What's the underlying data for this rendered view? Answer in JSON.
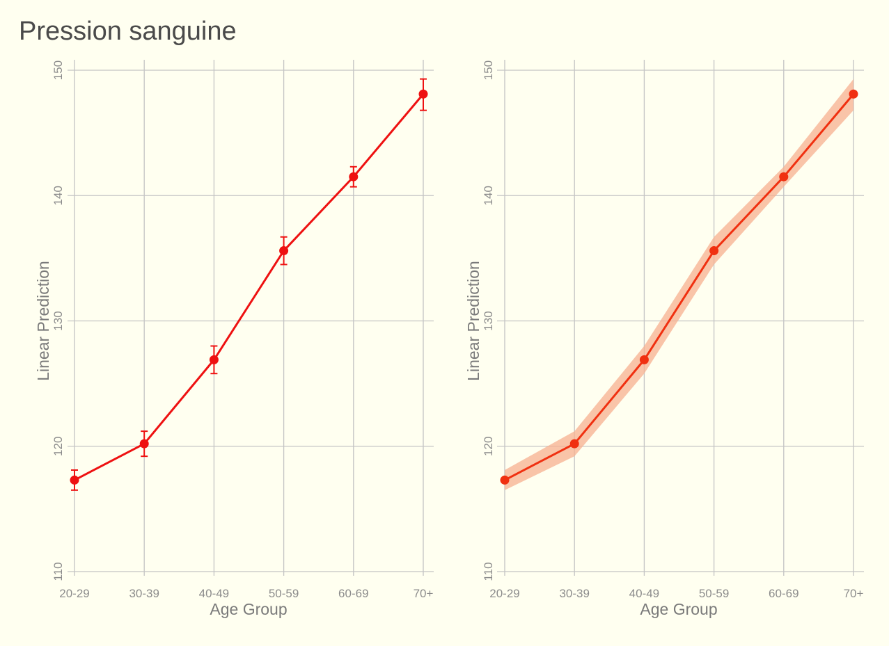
{
  "title": "Pression sanguine",
  "colors": {
    "background": "#fffff0",
    "grid": "#c4c4c4",
    "left_series": "#ee1111",
    "right_series": "#f03010",
    "right_band": "#f7b090"
  },
  "chart_data": [
    {
      "type": "line",
      "style": "points-with-error-bars",
      "title": "",
      "xlabel": "Age Group",
      "ylabel": "Linear Prediction",
      "categories": [
        "20-29",
        "30-39",
        "40-49",
        "50-59",
        "60-69",
        "70+"
      ],
      "ylim": [
        110,
        150
      ],
      "yticks": [
        110,
        120,
        130,
        140,
        150
      ],
      "grid": true,
      "series": [
        {
          "values": [
            117.3,
            120.2,
            126.9,
            135.6,
            141.5,
            148.1
          ],
          "lower": [
            116.5,
            119.2,
            125.8,
            134.5,
            140.7,
            146.8
          ],
          "upper": [
            118.1,
            121.2,
            128.0,
            136.7,
            142.3,
            149.3
          ]
        }
      ]
    },
    {
      "type": "line",
      "style": "points-with-confidence-band",
      "title": "",
      "xlabel": "Age Group",
      "ylabel": "Linear Prediction",
      "categories": [
        "20-29",
        "30-39",
        "40-49",
        "50-59",
        "60-69",
        "70+"
      ],
      "ylim": [
        110,
        150
      ],
      "yticks": [
        110,
        120,
        130,
        140,
        150
      ],
      "grid": true,
      "series": [
        {
          "values": [
            117.3,
            120.2,
            126.9,
            135.6,
            141.5,
            148.1
          ],
          "lower": [
            116.5,
            119.2,
            125.8,
            134.5,
            140.7,
            146.8
          ],
          "upper": [
            118.1,
            121.2,
            128.0,
            136.7,
            142.3,
            149.3
          ]
        }
      ]
    }
  ]
}
